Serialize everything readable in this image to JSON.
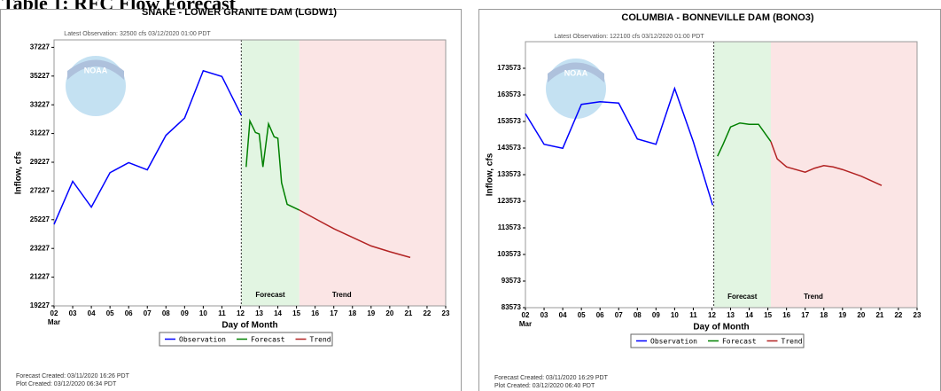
{
  "heading": "Table 1: RFC Flow Forecast",
  "chart_data": [
    {
      "type": "line",
      "title": "SNAKE - LOWER GRANITE DAM (LGDW1)",
      "subtitle": "Latest Observation: 32500 cfs 03/12/2020 01:00 PDT",
      "xlabel": "Day of Month",
      "ylabel": "Inflow, cfs",
      "month": "Mar",
      "xlim": [
        2,
        23
      ],
      "xticks": [
        {
          "value": 2,
          "label": "02"
        },
        {
          "value": 3,
          "label": "03"
        },
        {
          "value": 4,
          "label": "04"
        },
        {
          "value": 5,
          "label": "05"
        },
        {
          "value": 6,
          "label": "06"
        },
        {
          "value": 7,
          "label": "07"
        },
        {
          "value": 8,
          "label": "08"
        },
        {
          "value": 9,
          "label": "09"
        },
        10,
        11,
        12,
        13,
        14,
        15,
        16,
        17,
        18,
        19,
        20,
        21,
        22,
        23
      ],
      "ylim": [
        19227,
        37745
      ],
      "yticks": [
        19227,
        21227,
        23227,
        25227,
        27227,
        29227,
        31227,
        33227,
        35227,
        37227
      ],
      "forecast_start": 12.04,
      "trend_start": 15.15,
      "annotations": [
        "Forecast",
        "Trend"
      ],
      "series": [
        {
          "name": "Observation",
          "color": "#0000ff",
          "x": [
            2,
            3,
            4,
            5,
            6,
            7,
            8,
            9,
            10,
            11,
            12.04
          ],
          "values": [
            24900,
            27900,
            26100,
            28500,
            29200,
            28700,
            31100,
            32300,
            35600,
            35200,
            32500
          ]
        },
        {
          "name": "Forecast",
          "color": "#008000",
          "x": [
            12.3,
            12.5,
            12.8,
            13.0,
            13.2,
            13.5,
            13.8,
            14.0,
            14.2,
            14.5,
            15.15
          ],
          "values": [
            28900,
            32100,
            31300,
            31200,
            28900,
            31900,
            31000,
            30900,
            27800,
            26300,
            25900
          ]
        },
        {
          "name": "Trend",
          "color": "#b22222",
          "x": [
            15.15,
            16,
            17,
            18,
            19,
            20,
            21.1
          ],
          "values": [
            25900,
            25300,
            24600,
            24000,
            23400,
            23000,
            22600
          ]
        }
      ],
      "footer": [
        "Forecast Created: 03/11/2020 16:26 PDT",
        "Plot Created: 03/12/2020 06:34 PDT"
      ]
    },
    {
      "type": "line",
      "title": "COLUMBIA - BONNEVILLE DAM (BONO3)",
      "subtitle": "Latest Observation: 122100 cfs 03/12/2020 01:00 PDT",
      "xlabel": "Day of Month",
      "ylabel": "Inflow, cfs",
      "month": "Mar",
      "xlim": [
        2,
        23
      ],
      "xticks": [
        {
          "value": 2,
          "label": "02"
        },
        {
          "value": 3,
          "label": "03"
        },
        {
          "value": 4,
          "label": "04"
        },
        {
          "value": 5,
          "label": "05"
        },
        {
          "value": 6,
          "label": "06"
        },
        {
          "value": 7,
          "label": "07"
        },
        {
          "value": 8,
          "label": "08"
        },
        {
          "value": 9,
          "label": "09"
        },
        10,
        11,
        12,
        13,
        14,
        15,
        16,
        17,
        18,
        19,
        20,
        21,
        22,
        23
      ],
      "ylim": [
        83573,
        183573
      ],
      "yticks": [
        83573,
        93573,
        103573,
        113573,
        123573,
        133573,
        143573,
        153573,
        163573,
        173573
      ],
      "forecast_start": 12.1,
      "trend_start": 15.16,
      "annotations": [
        "Forecast",
        "Trend"
      ],
      "series": [
        {
          "name": "Observation",
          "color": "#0000ff",
          "x": [
            2,
            3,
            4,
            5,
            6,
            7,
            8,
            9,
            10,
            11,
            12.04
          ],
          "values": [
            156500,
            145000,
            143500,
            160000,
            161000,
            160500,
            147000,
            145000,
            166000,
            146000,
            122100
          ]
        },
        {
          "name": "Forecast",
          "color": "#008000",
          "x": [
            12.3,
            12.6,
            13,
            13.5,
            14,
            14.5,
            15.16
          ],
          "values": [
            140500,
            145000,
            151500,
            153000,
            152500,
            152500,
            146000
          ]
        },
        {
          "name": "Trend",
          "color": "#b22222",
          "x": [
            15.16,
            15.5,
            16,
            17,
            17.5,
            18,
            18.5,
            19,
            20,
            21.1
          ],
          "values": [
            146000,
            139500,
            136500,
            134500,
            136000,
            137000,
            136500,
            135500,
            133000,
            129500
          ]
        }
      ],
      "footer": [
        "Forecast Created: 03/11/2020 16:29 PDT",
        "Plot Created: 03/12/2020 06:40 PDT"
      ]
    }
  ]
}
